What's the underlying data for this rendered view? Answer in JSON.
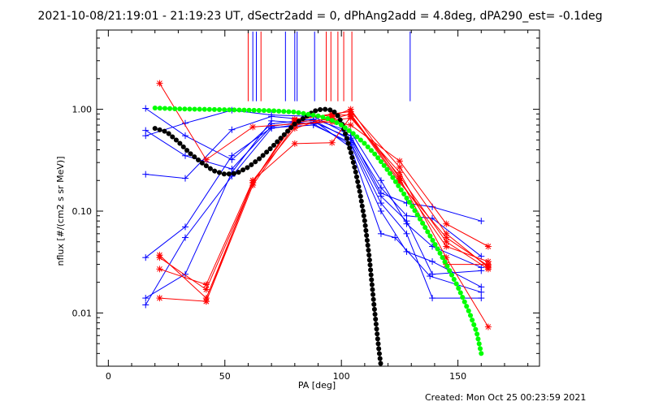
{
  "chart_data": {
    "type": "line",
    "title": "2021-10-08/21:19:01 - 21:19:23 UT, dSectr2add = 0, dPhAng2add = 4.8deg, dPA290_est= -0.1deg",
    "xlabel": "PA [deg]",
    "ylabel": "nflux [#/(cm2 s sr MeV)]",
    "xlim": [
      -5,
      185
    ],
    "ylim": [
      0.003,
      6.0
    ],
    "yscale": "log",
    "x_ticks": [
      0,
      50,
      100,
      150
    ],
    "x_tick_labels": [
      "0",
      "50",
      "100",
      "150"
    ],
    "y_ticks": [
      0.01,
      0.1,
      1.0
    ],
    "y_tick_labels": [
      "0.01",
      "0.10",
      "1.00"
    ],
    "footer": "Created: Mon Oct 25 00:23:59 2021",
    "colors": {
      "blue": "#0000ff",
      "red": "#ff0000",
      "black": "#000000",
      "green": "#00ff00"
    },
    "series": [
      {
        "color": "blue",
        "marker": "plus",
        "points": [
          [
            16,
            0.23
          ],
          [
            33,
            0.21
          ],
          [
            53,
            0.63
          ],
          [
            70,
            0.85
          ],
          [
            88,
            0.78
          ],
          [
            104,
            0.42
          ],
          [
            117,
            0.06
          ],
          [
            123,
            0.055
          ],
          [
            138,
            0.023
          ],
          [
            160,
            0.016
          ]
        ]
      },
      {
        "color": "blue",
        "marker": "plus",
        "points": [
          [
            16,
            0.55
          ],
          [
            33,
            0.73
          ],
          [
            53,
            0.98
          ],
          [
            70,
            0.88
          ],
          [
            88,
            0.85
          ],
          [
            104,
            0.55
          ],
          [
            117,
            0.15
          ],
          [
            128,
            0.12
          ],
          [
            139,
            0.11
          ],
          [
            160,
            0.08
          ]
        ]
      },
      {
        "color": "blue",
        "marker": "plus",
        "points": [
          [
            16,
            0.012
          ],
          [
            33,
            0.055
          ],
          [
            53,
            0.22
          ],
          [
            70,
            0.65
          ],
          [
            88,
            0.75
          ],
          [
            104,
            0.52
          ],
          [
            117,
            0.17
          ],
          [
            128,
            0.09
          ],
          [
            139,
            0.085
          ],
          [
            160,
            0.036
          ]
        ]
      },
      {
        "color": "blue",
        "marker": "plus",
        "points": [
          [
            16,
            0.035
          ],
          [
            33,
            0.07
          ],
          [
            53,
            0.35
          ],
          [
            70,
            0.66
          ],
          [
            88,
            0.7
          ],
          [
            104,
            0.47
          ],
          [
            117,
            0.12
          ],
          [
            128,
            0.06
          ],
          [
            139,
            0.014
          ],
          [
            160,
            0.014
          ]
        ]
      },
      {
        "color": "blue",
        "marker": "plus",
        "points": [
          [
            16,
            0.014
          ],
          [
            33,
            0.024
          ],
          [
            53,
            0.24
          ],
          [
            70,
            0.77
          ],
          [
            88,
            0.72
          ],
          [
            104,
            0.45
          ],
          [
            117,
            0.1
          ],
          [
            128,
            0.04
          ],
          [
            139,
            0.032
          ],
          [
            160,
            0.018
          ]
        ]
      },
      {
        "color": "blue",
        "marker": "plus",
        "points": [
          [
            16,
            1.02
          ],
          [
            33,
            0.55
          ],
          [
            53,
            0.32
          ],
          [
            70,
            0.72
          ],
          [
            88,
            0.8
          ],
          [
            104,
            0.6
          ],
          [
            117,
            0.2
          ],
          [
            128,
            0.075
          ],
          [
            139,
            0.045
          ],
          [
            160,
            0.028
          ]
        ]
      },
      {
        "color": "blue",
        "marker": "plus",
        "points": [
          [
            16,
            0.62
          ],
          [
            33,
            0.35
          ],
          [
            53,
            0.26
          ],
          [
            70,
            0.68
          ],
          [
            88,
            0.78
          ],
          [
            104,
            0.5
          ],
          [
            117,
            0.14
          ],
          [
            128,
            0.08
          ],
          [
            139,
            0.024
          ],
          [
            160,
            0.026
          ]
        ]
      },
      {
        "color": "red",
        "marker": "star",
        "points": [
          [
            22,
            1.8
          ],
          [
            42,
            0.32
          ],
          [
            62,
            0.67
          ],
          [
            80,
            0.72
          ],
          [
            96,
            0.75
          ],
          [
            104,
            0.7
          ],
          [
            125,
            0.31
          ],
          [
            145,
            0.075
          ],
          [
            163,
            0.045
          ]
        ]
      },
      {
        "color": "red",
        "marker": "star",
        "points": [
          [
            22,
            0.027
          ],
          [
            42,
            0.019
          ],
          [
            62,
            0.2
          ],
          [
            80,
            0.46
          ],
          [
            96,
            0.47
          ],
          [
            104,
            0.85
          ],
          [
            125,
            0.22
          ],
          [
            145,
            0.05
          ],
          [
            163,
            0.027
          ]
        ]
      },
      {
        "color": "red",
        "marker": "star",
        "points": [
          [
            22,
            0.037
          ],
          [
            42,
            0.014
          ],
          [
            62,
            0.19
          ],
          [
            80,
            0.75
          ],
          [
            96,
            0.8
          ],
          [
            104,
            0.9
          ],
          [
            125,
            0.2
          ],
          [
            145,
            0.045
          ],
          [
            163,
            0.032
          ]
        ]
      },
      {
        "color": "red",
        "marker": "star",
        "points": [
          [
            22,
            0.014
          ],
          [
            42,
            0.013
          ],
          [
            62,
            0.18
          ],
          [
            80,
            0.7
          ],
          [
            96,
            0.78
          ],
          [
            104,
            0.82
          ],
          [
            125,
            0.24
          ],
          [
            145,
            0.035
          ],
          [
            163,
            0.0073
          ]
        ]
      },
      {
        "color": "red",
        "marker": "star",
        "points": [
          [
            22,
            0.035
          ],
          [
            42,
            0.017
          ],
          [
            62,
            0.19
          ],
          [
            80,
            0.78
          ],
          [
            96,
            0.9
          ],
          [
            104,
            0.95
          ],
          [
            125,
            0.27
          ],
          [
            145,
            0.06
          ],
          [
            163,
            0.028
          ]
        ]
      },
      {
        "color": "red",
        "marker": "star",
        "points": [
          [
            42,
            0.013
          ],
          [
            62,
            0.2
          ],
          [
            80,
            0.65
          ],
          [
            96,
            0.85
          ],
          [
            104,
            1.0
          ],
          [
            125,
            0.21
          ],
          [
            145,
            0.03
          ],
          [
            163,
            0.03
          ]
        ]
      },
      {
        "color": "red",
        "marker": "star",
        "points": [
          [
            62,
            0.19
          ],
          [
            80,
            0.8
          ],
          [
            96,
            0.88
          ],
          [
            104,
            0.88
          ],
          [
            125,
            0.19
          ],
          [
            145,
            0.055
          ],
          [
            163,
            0.029
          ]
        ]
      }
    ],
    "fit_black": [
      [
        20,
        0.65
      ],
      [
        25,
        0.6
      ],
      [
        30,
        0.48
      ],
      [
        35,
        0.37
      ],
      [
        40,
        0.3
      ],
      [
        45,
        0.25
      ],
      [
        50,
        0.23
      ],
      [
        55,
        0.235
      ],
      [
        60,
        0.27
      ],
      [
        65,
        0.33
      ],
      [
        70,
        0.42
      ],
      [
        75,
        0.55
      ],
      [
        80,
        0.72
      ],
      [
        85,
        0.85
      ],
      [
        88,
        0.95
      ],
      [
        90,
        0.99
      ],
      [
        93,
        1.0
      ],
      [
        96,
        0.98
      ],
      [
        98,
        0.9
      ],
      [
        100,
        0.75
      ],
      [
        102,
        0.55
      ],
      [
        104,
        0.38
      ],
      [
        106,
        0.25
      ],
      [
        108,
        0.15
      ],
      [
        110,
        0.08
      ],
      [
        112,
        0.035
      ],
      [
        114,
        0.012
      ],
      [
        116,
        0.0045
      ],
      [
        117,
        0.003
      ]
    ],
    "fit_green": [
      [
        20,
        1.03
      ],
      [
        30,
        1.01
      ],
      [
        40,
        1.0
      ],
      [
        50,
        0.99
      ],
      [
        60,
        0.98
      ],
      [
        70,
        0.97
      ],
      [
        80,
        0.94
      ],
      [
        90,
        0.86
      ],
      [
        95,
        0.8
      ],
      [
        100,
        0.7
      ],
      [
        105,
        0.58
      ],
      [
        110,
        0.46
      ],
      [
        115,
        0.35
      ],
      [
        120,
        0.25
      ],
      [
        125,
        0.17
      ],
      [
        130,
        0.115
      ],
      [
        135,
        0.075
      ],
      [
        140,
        0.048
      ],
      [
        145,
        0.03
      ],
      [
        150,
        0.018
      ],
      [
        155,
        0.01
      ],
      [
        158,
        0.0065
      ],
      [
        160,
        0.004
      ]
    ],
    "top_marks": [
      {
        "color": "red",
        "x": 60,
        "top": 5.8
      },
      {
        "color": "blue",
        "x": 62,
        "top": 5.8
      },
      {
        "color": "blue",
        "x": 63.5,
        "top": 5.8
      },
      {
        "color": "red",
        "x": 65.5,
        "top": 5.8
      },
      {
        "color": "blue",
        "x": 76,
        "top": 5.8
      },
      {
        "color": "blue",
        "x": 80,
        "top": 5.8
      },
      {
        "color": "blue",
        "x": 81,
        "top": 5.8
      },
      {
        "color": "blue",
        "x": 88.5,
        "top": 5.8
      },
      {
        "color": "red",
        "x": 93.5,
        "top": 5.8
      },
      {
        "color": "red",
        "x": 95.5,
        "top": 5.8
      },
      {
        "color": "red",
        "x": 98.5,
        "top": 5.8
      },
      {
        "color": "red",
        "x": 101,
        "top": 5.8
      },
      {
        "color": "red",
        "x": 104.5,
        "top": 5.8
      },
      {
        "color": "blue",
        "x": 129.5,
        "top": 5.8
      }
    ]
  }
}
